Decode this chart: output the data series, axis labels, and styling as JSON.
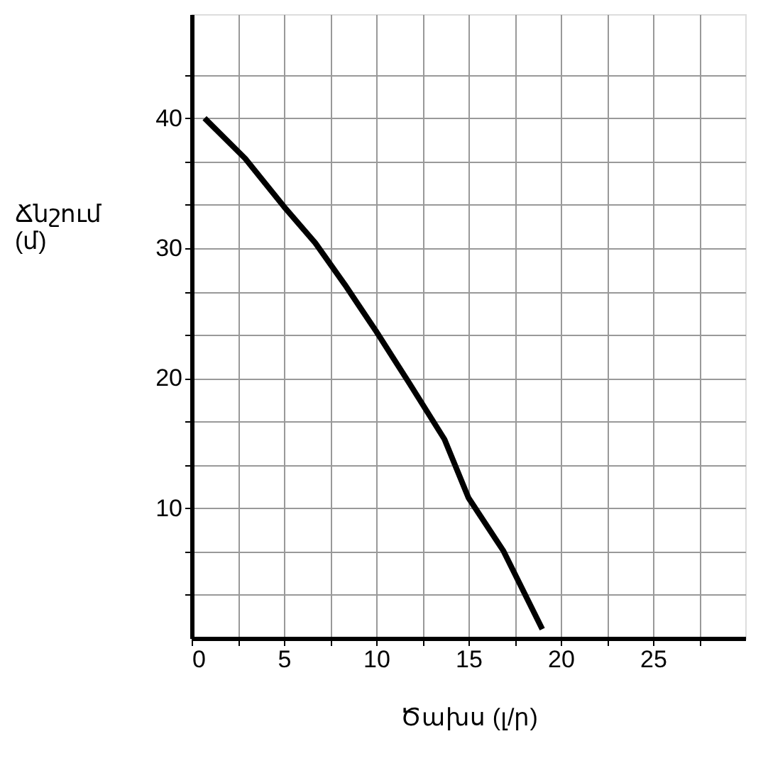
{
  "chart_data": {
    "type": "line",
    "xlabel": "Ծախս (լ/ր)",
    "ylabel": "Ճնշում (մ)",
    "x": [
      0.7,
      2.9,
      5,
      6.7,
      8.3,
      10,
      11.8,
      13.7,
      15,
      16.9,
      19
    ],
    "series": [
      {
        "color": "#000000",
        "values": [
          40.0,
          36.9,
          33.2,
          30.4,
          27.2,
          23.6,
          19.6,
          15.3,
          10.8,
          6.7,
          0.7
        ]
      }
    ],
    "xlim": [
      0,
      30
    ],
    "ylim": [
      0,
      48
    ],
    "xticks": [
      0,
      {
        "value": 2.5,
        "label": null
      },
      5,
      {
        "value": 7.5,
        "label": null
      },
      10,
      {
        "value": 12.5,
        "label": null
      },
      15,
      {
        "value": 17.5,
        "label": null
      },
      20,
      {
        "value": 22.5,
        "label": null
      },
      25,
      {
        "value": 27.5,
        "label": null
      }
    ],
    "yticks": [
      {
        "value": 3.33,
        "label": null
      },
      {
        "value": 6.67,
        "label": null
      },
      10,
      {
        "value": 13.33,
        "label": null
      },
      {
        "value": 16.67,
        "label": null
      },
      20,
      {
        "value": 23.33,
        "label": null
      },
      {
        "value": 26.67,
        "label": null
      },
      30,
      {
        "value": 33.33,
        "label": null
      },
      {
        "value": 36.67,
        "label": null
      },
      40,
      {
        "value": 43.33,
        "label": null
      }
    ],
    "grid": true,
    "line_style": "solid",
    "marker": "none"
  }
}
